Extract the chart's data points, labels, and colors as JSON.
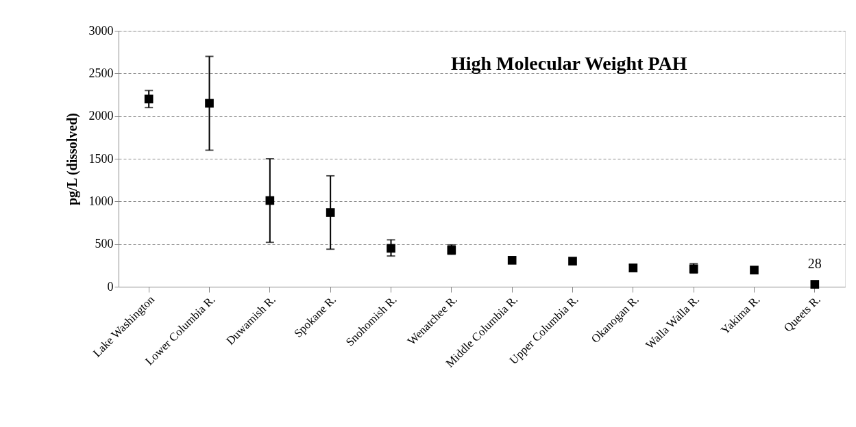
{
  "chart_data": {
    "type": "scatter",
    "title": "High Molecular Weight PAH",
    "ylabel": "pg/L (dissolved)",
    "categories": [
      "Lake Washington",
      "Lower Columbia R.",
      "Duwamish R.",
      "Spokane R.",
      "Snohomish R.",
      "Wenatchee R.",
      "Middle Columbia R.",
      "Upper Columbia R.",
      "Okanogan R.",
      "Walla Walla R.",
      "Yakima R.",
      "Queets R."
    ],
    "series": [
      {
        "color": "#000000",
        "values": [
          2200,
          2150,
          1010,
          870,
          450,
          430,
          310,
          300,
          220,
          210,
          195,
          28
        ],
        "errors": [
          [
            2100,
            2300
          ],
          [
            1600,
            2700
          ],
          [
            520,
            1500
          ],
          [
            440,
            1300
          ],
          [
            360,
            550
          ],
          [
            380,
            490
          ],
          null,
          null,
          [
            180,
            260
          ],
          [
            160,
            270
          ],
          null,
          null
        ],
        "value_labels": [
          null,
          null,
          null,
          null,
          null,
          null,
          null,
          null,
          null,
          null,
          null,
          "28"
        ]
      }
    ],
    "ylim": [
      0,
      3000
    ],
    "yticks": [
      0,
      500,
      1000,
      1500,
      2000,
      2500,
      3000
    ],
    "grid": "y",
    "marker": "square",
    "legend": false
  }
}
